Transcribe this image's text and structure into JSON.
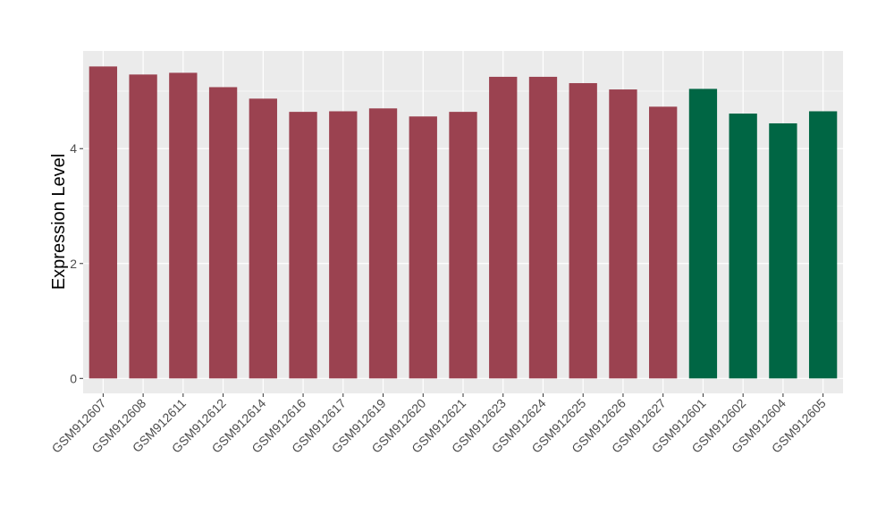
{
  "chart_data": {
    "type": "bar",
    "title": "",
    "xlabel": "",
    "ylabel": "Expression Level",
    "ylim": [
      -0.26,
      5.7
    ],
    "yticks": [
      0,
      2,
      4
    ],
    "grid": true,
    "legend": "none",
    "categories": [
      "GSM912607",
      "GSM912608",
      "GSM912611",
      "GSM912612",
      "GSM912614",
      "GSM912616",
      "GSM912617",
      "GSM912619",
      "GSM912620",
      "GSM912621",
      "GSM912623",
      "GSM912624",
      "GSM912625",
      "GSM912626",
      "GSM912627",
      "GSM912601",
      "GSM912602",
      "GSM912604",
      "GSM912605"
    ],
    "values": [
      5.43,
      5.29,
      5.32,
      5.07,
      4.87,
      4.64,
      4.65,
      4.7,
      4.56,
      4.64,
      5.25,
      5.25,
      5.14,
      5.03,
      4.73,
      5.04,
      4.61,
      4.44,
      4.65
    ],
    "groups": [
      "a",
      "a",
      "a",
      "a",
      "a",
      "a",
      "a",
      "a",
      "a",
      "a",
      "a",
      "a",
      "a",
      "a",
      "a",
      "b",
      "b",
      "b",
      "b"
    ],
    "colors": {
      "a": "#9b4250",
      "b": "#006644"
    },
    "panel_background": "#ebebeb",
    "gridline_color": "#ffffff"
  }
}
